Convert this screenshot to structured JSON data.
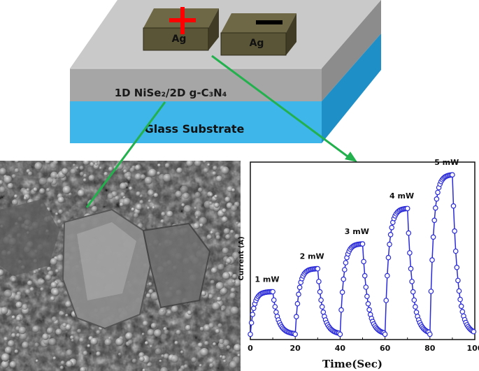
{
  "device": {
    "electrode_left_label": "Ag",
    "electrode_right_label": "Ag",
    "film_label": "1D NiSe₂/2D g-C₃N₄",
    "substrate_label": "Glass Substrate",
    "colors": {
      "film": "#a6a6a6",
      "film_side": "#7f7f7f",
      "film_top": "#bfbfbf",
      "substrate": "#3fb6ea",
      "substrate_side": "#1f8fc7",
      "electrode": "#5a5537",
      "plus": "#ff0000",
      "minus": "#000000",
      "arrow": "#22b14c"
    }
  },
  "sem_image": {
    "description_icon": "sem-micrograph"
  },
  "chart_data": {
    "type": "line",
    "xlabel": "Time(Sec)",
    "ylabel": "Current (A)",
    "xlim": [
      0,
      100
    ],
    "xticks": [
      "0",
      "20",
      "40",
      "60",
      "80",
      "100"
    ],
    "series_color": "#2a2ad8",
    "annotations": [
      "1 mW",
      "2 mW",
      "3 mW",
      "4 mW",
      "5 mW"
    ],
    "cycles": [
      {
        "on": 0,
        "off": 10,
        "peak": 0.27
      },
      {
        "on": 20,
        "off": 30,
        "peak": 0.4
      },
      {
        "on": 40,
        "off": 50,
        "peak": 0.54
      },
      {
        "on": 60,
        "off": 70,
        "peak": 0.74
      },
      {
        "on": 80,
        "off": 90,
        "peak": 0.93
      }
    ]
  }
}
